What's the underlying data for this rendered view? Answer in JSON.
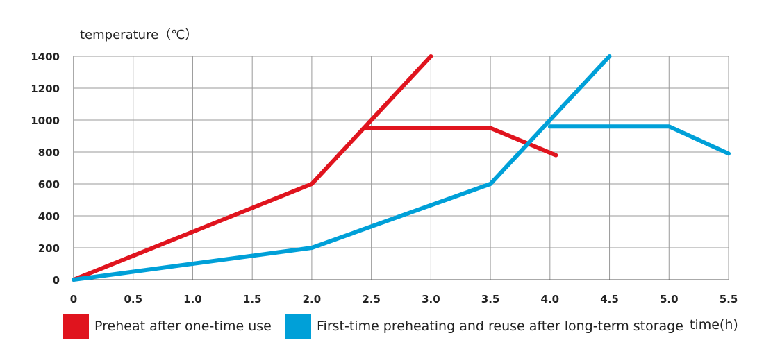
{
  "chart_data": {
    "type": "line",
    "ylabel": "temperature（℃）",
    "xlabel": "time(h)",
    "x_ticks": [
      "0",
      "0.5",
      "1.0",
      "1.5",
      "2.0",
      "2.5",
      "3.0",
      "3.5",
      "4.0",
      "4.5",
      "5.0",
      "5.5"
    ],
    "y_ticks": [
      "0",
      "200",
      "400",
      "600",
      "800",
      "1000",
      "1200",
      "1400"
    ],
    "xlim": [
      0,
      5.5
    ],
    "ylim": [
      0,
      1400
    ],
    "grid": true,
    "legend_position": "bottom",
    "series": [
      {
        "name": "Preheat after one-time use",
        "color": "#e0141e",
        "segments": [
          [
            [
              0,
              0
            ],
            [
              2.0,
              600
            ],
            [
              3.0,
              1400
            ]
          ],
          [
            [
              2.45,
              950
            ],
            [
              3.5,
              950
            ],
            [
              4.05,
              780
            ]
          ]
        ]
      },
      {
        "name": "First-time preheating and reuse after long-term storage",
        "color": "#00a0d8",
        "segments": [
          [
            [
              0,
              0
            ],
            [
              2.0,
              200
            ],
            [
              3.5,
              600
            ],
            [
              4.5,
              1400
            ]
          ],
          [
            [
              4.0,
              960
            ],
            [
              5.0,
              960
            ],
            [
              5.5,
              790
            ]
          ]
        ]
      }
    ]
  }
}
